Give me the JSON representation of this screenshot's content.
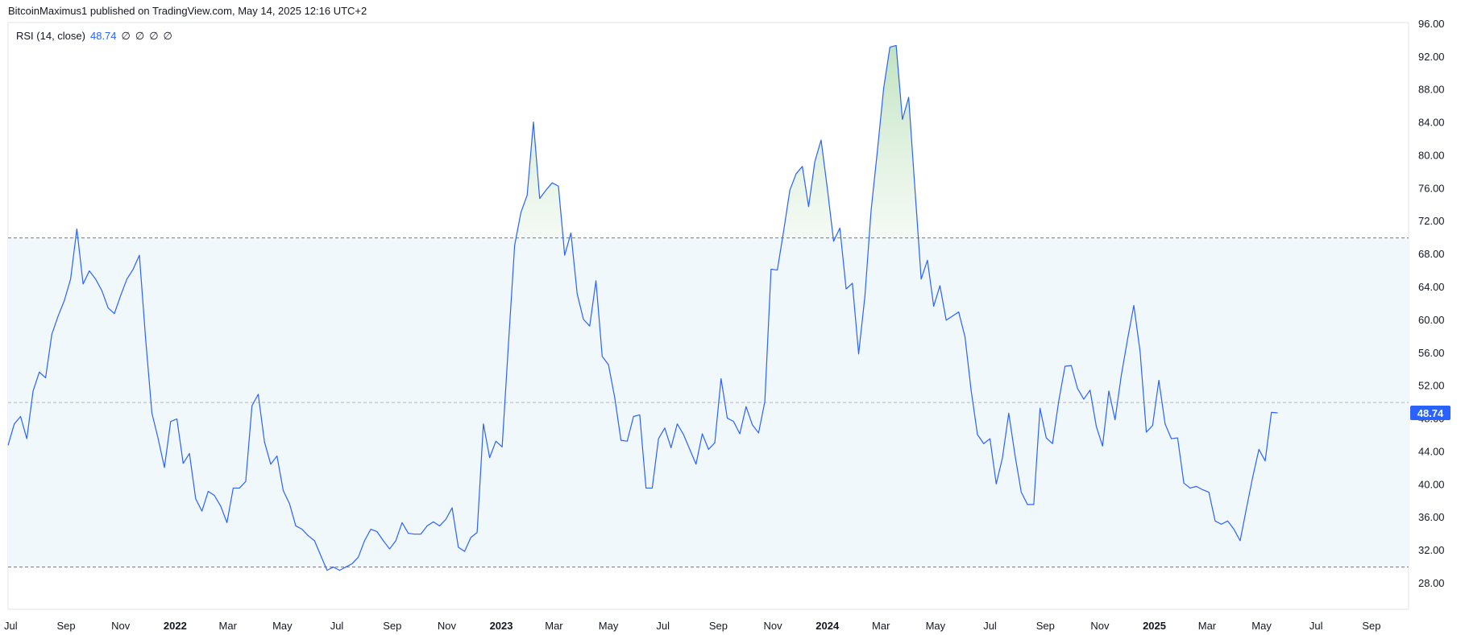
{
  "header": {
    "text": "BitcoinMaximus1 published on TradingView.com, May 14, 2025 12:16 UTC+2"
  },
  "indicator": {
    "name": "RSI (14, close)",
    "value": "48.74",
    "na_values": [
      "∅",
      "∅",
      "∅",
      "∅"
    ]
  },
  "colors": {
    "line": "#2962ff",
    "band_fill": "#f1f8fc",
    "overbought_fill": "#d7eed7",
    "band_line": "#787b86",
    "mid_line": "#b2b5be",
    "axis_text": "#131722",
    "badge_bg": "#2962ff",
    "badge_text": "#ffffff",
    "grid_border": "#e0e3eb"
  },
  "chart_data": {
    "type": "line",
    "title": "RSI (14, close)",
    "ylim": [
      26,
      96
    ],
    "y_ticks": [
      "28.00",
      "32.00",
      "36.00",
      "40.00",
      "44.00",
      "48.00",
      "52.00",
      "56.00",
      "60.00",
      "64.00",
      "68.00",
      "72.00",
      "76.00",
      "80.00",
      "84.00",
      "88.00",
      "92.00",
      "96.00"
    ],
    "x_ticks": [
      {
        "label": "Jul",
        "year": false
      },
      {
        "label": "Sep",
        "year": false
      },
      {
        "label": "Nov",
        "year": false
      },
      {
        "label": "2022",
        "year": true
      },
      {
        "label": "Mar",
        "year": false
      },
      {
        "label": "May",
        "year": false
      },
      {
        "label": "Jul",
        "year": false
      },
      {
        "label": "Sep",
        "year": false
      },
      {
        "label": "Nov",
        "year": false
      },
      {
        "label": "2023",
        "year": true
      },
      {
        "label": "Mar",
        "year": false
      },
      {
        "label": "May",
        "year": false
      },
      {
        "label": "Jul",
        "year": false
      },
      {
        "label": "Sep",
        "year": false
      },
      {
        "label": "Nov",
        "year": false
      },
      {
        "label": "2024",
        "year": true
      },
      {
        "label": "Mar",
        "year": false
      },
      {
        "label": "May",
        "year": false
      },
      {
        "label": "Jul",
        "year": false
      },
      {
        "label": "Sep",
        "year": false
      },
      {
        "label": "Nov",
        "year": false
      },
      {
        "label": "2025",
        "year": true
      },
      {
        "label": "Mar",
        "year": false
      },
      {
        "label": "May",
        "year": false
      },
      {
        "label": "Jul",
        "year": false
      },
      {
        "label": "Sep",
        "year": false
      }
    ],
    "x_start": "2021-06-28",
    "x_end": "2025-09-29",
    "upper_band": 70,
    "middle_band": 50,
    "lower_band": 30,
    "last_value_label": "48.74",
    "series": [
      {
        "values": [
          [
            "2021-06-28",
            44.8
          ],
          [
            "2021-07-05",
            47.4
          ],
          [
            "2021-07-12",
            48.3
          ],
          [
            "2021-07-19",
            45.6
          ],
          [
            "2021-07-26",
            51.4
          ],
          [
            "2021-08-02",
            53.7
          ],
          [
            "2021-08-09",
            53.0
          ],
          [
            "2021-08-16",
            58.3
          ],
          [
            "2021-08-23",
            60.5
          ],
          [
            "2021-08-30",
            62.4
          ],
          [
            "2021-09-06",
            65.0
          ],
          [
            "2021-09-13",
            71.1
          ],
          [
            "2021-09-20",
            64.4
          ],
          [
            "2021-09-27",
            66.0
          ],
          [
            "2021-10-04",
            65.0
          ],
          [
            "2021-10-11",
            63.6
          ],
          [
            "2021-10-18",
            61.5
          ],
          [
            "2021-10-25",
            60.8
          ],
          [
            "2021-11-01",
            63.0
          ],
          [
            "2021-11-08",
            65.0
          ],
          [
            "2021-11-15",
            66.2
          ],
          [
            "2021-11-22",
            67.9
          ],
          [
            "2021-11-29",
            57.7
          ],
          [
            "2021-12-06",
            48.7
          ],
          [
            "2021-12-13",
            45.6
          ],
          [
            "2021-12-20",
            42.1
          ],
          [
            "2021-12-27",
            47.7
          ],
          [
            "2022-01-03",
            48.0
          ],
          [
            "2022-01-10",
            42.6
          ],
          [
            "2022-01-17",
            43.8
          ],
          [
            "2022-01-24",
            38.3
          ],
          [
            "2022-01-31",
            36.8
          ],
          [
            "2022-02-07",
            39.2
          ],
          [
            "2022-02-14",
            38.7
          ],
          [
            "2022-02-21",
            37.4
          ],
          [
            "2022-02-28",
            35.4
          ],
          [
            "2022-03-07",
            39.6
          ],
          [
            "2022-03-14",
            39.6
          ],
          [
            "2022-03-21",
            40.4
          ],
          [
            "2022-03-28",
            49.6
          ],
          [
            "2022-04-04",
            51.0
          ],
          [
            "2022-04-11",
            45.2
          ],
          [
            "2022-04-18",
            42.5
          ],
          [
            "2022-04-25",
            43.5
          ],
          [
            "2022-05-02",
            39.3
          ],
          [
            "2022-05-09",
            37.7
          ],
          [
            "2022-05-16",
            35.0
          ],
          [
            "2022-05-23",
            34.6
          ],
          [
            "2022-05-30",
            33.8
          ],
          [
            "2022-06-06",
            33.2
          ],
          [
            "2022-06-13",
            31.4
          ],
          [
            "2022-06-20",
            29.6
          ],
          [
            "2022-06-27",
            30.0
          ],
          [
            "2022-07-04",
            29.6
          ],
          [
            "2022-07-11",
            30.0
          ],
          [
            "2022-07-18",
            30.4
          ],
          [
            "2022-07-25",
            31.2
          ],
          [
            "2022-08-01",
            33.2
          ],
          [
            "2022-08-08",
            34.6
          ],
          [
            "2022-08-15",
            34.3
          ],
          [
            "2022-08-22",
            33.2
          ],
          [
            "2022-08-29",
            32.2
          ],
          [
            "2022-09-05",
            33.2
          ],
          [
            "2022-09-12",
            35.4
          ],
          [
            "2022-09-19",
            34.1
          ],
          [
            "2022-09-26",
            34.0
          ],
          [
            "2022-10-03",
            34.0
          ],
          [
            "2022-10-10",
            35.0
          ],
          [
            "2022-10-17",
            35.5
          ],
          [
            "2022-10-24",
            35.0
          ],
          [
            "2022-10-31",
            35.8
          ],
          [
            "2022-11-07",
            37.2
          ],
          [
            "2022-11-14",
            32.4
          ],
          [
            "2022-11-21",
            31.9
          ],
          [
            "2022-11-28",
            33.6
          ],
          [
            "2022-12-05",
            34.2
          ],
          [
            "2022-12-12",
            47.4
          ],
          [
            "2022-12-19",
            43.3
          ],
          [
            "2022-12-26",
            45.3
          ],
          [
            "2023-01-02",
            44.6
          ],
          [
            "2023-01-09",
            57.0
          ],
          [
            "2023-01-16",
            69.1
          ],
          [
            "2023-01-23",
            73.1
          ],
          [
            "2023-01-30",
            75.2
          ],
          [
            "2023-02-06",
            84.1
          ],
          [
            "2023-02-13",
            74.8
          ],
          [
            "2023-02-20",
            75.8
          ],
          [
            "2023-02-27",
            76.7
          ],
          [
            "2023-03-06",
            76.3
          ],
          [
            "2023-03-13",
            67.9
          ],
          [
            "2023-03-20",
            70.6
          ],
          [
            "2023-03-27",
            63.2
          ],
          [
            "2023-04-03",
            60.1
          ],
          [
            "2023-04-10",
            59.3
          ],
          [
            "2023-04-17",
            64.8
          ],
          [
            "2023-04-24",
            55.6
          ],
          [
            "2023-05-01",
            54.6
          ],
          [
            "2023-05-08",
            50.6
          ],
          [
            "2023-05-15",
            45.4
          ],
          [
            "2023-05-22",
            45.3
          ],
          [
            "2023-05-29",
            48.3
          ],
          [
            "2023-06-05",
            48.5
          ],
          [
            "2023-06-12",
            39.6
          ],
          [
            "2023-06-19",
            39.6
          ],
          [
            "2023-06-26",
            45.6
          ],
          [
            "2023-07-03",
            46.9
          ],
          [
            "2023-07-10",
            44.5
          ],
          [
            "2023-07-17",
            47.4
          ],
          [
            "2023-07-24",
            46.1
          ],
          [
            "2023-07-31",
            44.3
          ],
          [
            "2023-08-07",
            42.5
          ],
          [
            "2023-08-14",
            46.2
          ],
          [
            "2023-08-21",
            44.3
          ],
          [
            "2023-08-28",
            45.1
          ],
          [
            "2023-09-04",
            52.9
          ],
          [
            "2023-09-11",
            48.1
          ],
          [
            "2023-09-18",
            47.7
          ],
          [
            "2023-09-25",
            46.2
          ],
          [
            "2023-10-02",
            49.5
          ],
          [
            "2023-10-09",
            47.3
          ],
          [
            "2023-10-16",
            46.3
          ],
          [
            "2023-10-23",
            50.1
          ],
          [
            "2023-10-30",
            66.2
          ],
          [
            "2023-11-06",
            66.1
          ],
          [
            "2023-11-13",
            70.8
          ],
          [
            "2023-11-20",
            75.8
          ],
          [
            "2023-11-27",
            77.8
          ],
          [
            "2023-12-04",
            78.7
          ],
          [
            "2023-12-11",
            73.8
          ],
          [
            "2023-12-18",
            79.3
          ],
          [
            "2023-12-25",
            81.9
          ],
          [
            "2024-01-01",
            76.0
          ],
          [
            "2024-01-08",
            69.6
          ],
          [
            "2024-01-15",
            71.2
          ],
          [
            "2024-01-22",
            63.8
          ],
          [
            "2024-01-29",
            64.5
          ],
          [
            "2024-02-05",
            55.9
          ],
          [
            "2024-02-12",
            62.9
          ],
          [
            "2024-02-19",
            73.4
          ],
          [
            "2024-02-26",
            80.6
          ],
          [
            "2024-03-04",
            88.2
          ],
          [
            "2024-03-11",
            93.2
          ],
          [
            "2024-03-18",
            93.4
          ],
          [
            "2024-03-25",
            84.4
          ],
          [
            "2024-04-01",
            87.1
          ],
          [
            "2024-04-08",
            76.0
          ],
          [
            "2024-04-15",
            65.0
          ],
          [
            "2024-04-22",
            67.3
          ],
          [
            "2024-04-29",
            61.7
          ],
          [
            "2024-05-06",
            64.2
          ],
          [
            "2024-05-13",
            60.0
          ],
          [
            "2024-05-20",
            60.5
          ],
          [
            "2024-05-27",
            61.0
          ],
          [
            "2024-06-03",
            58.0
          ],
          [
            "2024-06-10",
            51.4
          ],
          [
            "2024-06-17",
            46.1
          ],
          [
            "2024-06-24",
            45.0
          ],
          [
            "2024-07-01",
            45.6
          ],
          [
            "2024-07-08",
            40.1
          ],
          [
            "2024-07-15",
            43.3
          ],
          [
            "2024-07-22",
            48.7
          ],
          [
            "2024-07-29",
            43.6
          ],
          [
            "2024-08-05",
            39.1
          ],
          [
            "2024-08-12",
            37.6
          ],
          [
            "2024-08-19",
            37.6
          ],
          [
            "2024-08-26",
            49.3
          ],
          [
            "2024-09-02",
            45.7
          ],
          [
            "2024-09-09",
            45.0
          ],
          [
            "2024-09-16",
            50.2
          ],
          [
            "2024-09-23",
            54.4
          ],
          [
            "2024-09-30",
            54.5
          ],
          [
            "2024-10-07",
            51.7
          ],
          [
            "2024-10-14",
            50.4
          ],
          [
            "2024-10-21",
            51.5
          ],
          [
            "2024-10-28",
            47.1
          ],
          [
            "2024-11-04",
            44.7
          ],
          [
            "2024-11-11",
            51.4
          ],
          [
            "2024-11-18",
            47.9
          ],
          [
            "2024-11-25",
            53.3
          ],
          [
            "2024-12-02",
            57.7
          ],
          [
            "2024-12-09",
            61.8
          ],
          [
            "2024-12-16",
            56.2
          ],
          [
            "2024-12-23",
            46.4
          ],
          [
            "2024-12-30",
            47.2
          ],
          [
            "2025-01-06",
            52.7
          ],
          [
            "2025-01-13",
            47.4
          ],
          [
            "2025-01-20",
            45.6
          ],
          [
            "2025-01-27",
            45.7
          ],
          [
            "2025-02-03",
            40.2
          ],
          [
            "2025-02-10",
            39.6
          ],
          [
            "2025-02-17",
            39.8
          ],
          [
            "2025-02-24",
            39.4
          ],
          [
            "2025-03-03",
            39.1
          ],
          [
            "2025-03-10",
            35.6
          ],
          [
            "2025-03-17",
            35.2
          ],
          [
            "2025-03-24",
            35.6
          ],
          [
            "2025-03-31",
            34.6
          ],
          [
            "2025-04-07",
            33.2
          ],
          [
            "2025-04-14",
            37.1
          ],
          [
            "2025-04-21",
            40.9
          ],
          [
            "2025-04-28",
            44.3
          ],
          [
            "2025-05-05",
            42.9
          ],
          [
            "2025-05-12",
            48.8
          ],
          [
            "2025-05-19",
            48.74
          ]
        ]
      }
    ]
  }
}
